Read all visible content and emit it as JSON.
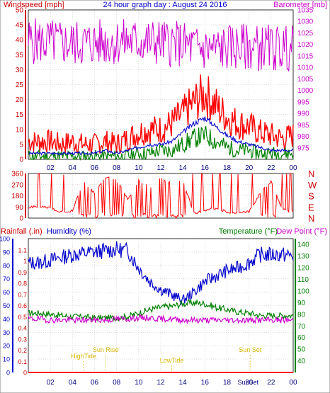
{
  "chart_data": [
    {
      "type": "line",
      "title": "24 hour graph day : August 24 2016",
      "left_axis_label": "Windspeed [mph]",
      "right_axis_label": "Barometer [mb]",
      "ylim": [
        0,
        50
      ],
      "y_ticks": [
        "0",
        "5",
        "10",
        "15",
        "20",
        "25",
        "30",
        "35",
        "40",
        "45",
        "50"
      ],
      "y2lim": [
        970,
        1035
      ],
      "y2_ticks": [
        "975",
        "980",
        "985",
        "990",
        "995",
        "1000",
        "1005",
        "1010",
        "1015",
        "1020",
        "1025",
        "1030",
        "1035"
      ],
      "x_ticks": [
        "02",
        "04",
        "06",
        "08",
        "10",
        "12",
        "14",
        "16",
        "18",
        "20",
        "22",
        "00"
      ],
      "grid": true,
      "colors": {
        "gust": "#ff0000",
        "average": "#0000cc",
        "wind": "#008000",
        "barometer": "#cc00cc"
      },
      "hours": [
        0,
        1,
        2,
        3,
        4,
        5,
        6,
        7,
        8,
        9,
        10,
        11,
        12,
        13,
        14,
        15,
        16,
        17,
        18,
        19,
        20,
        21,
        22,
        23,
        24
      ],
      "series": [
        {
          "role": "gust",
          "values": [
            6,
            6,
            6,
            5,
            6,
            5,
            5,
            6,
            5,
            7,
            9,
            10,
            10,
            12,
            15,
            19,
            22,
            18,
            14,
            12,
            11,
            9,
            8,
            7,
            8
          ]
        },
        {
          "role": "average",
          "values": [
            2,
            2,
            2,
            2,
            2,
            2,
            2,
            3,
            2,
            3,
            4,
            5,
            5,
            6,
            9,
            12,
            14,
            11,
            8,
            6,
            5,
            4,
            3,
            3,
            3
          ]
        },
        {
          "role": "wind",
          "values": [
            1,
            1,
            1,
            1,
            1,
            1,
            1,
            1,
            1,
            1,
            2,
            2,
            3,
            3,
            5,
            7,
            8,
            6,
            4,
            3,
            3,
            2,
            2,
            2,
            2
          ]
        },
        {
          "role": "barometer",
          "axis": "right",
          "values": [
            1021.5,
            1021.3,
            1021,
            1020.6,
            1020.4,
            1020.5,
            1020.8,
            1021,
            1021.2,
            1021.3,
            1021.3,
            1021.1,
            1020.9,
            1020.4,
            1019.8,
            1018.8,
            1018,
            1018.2,
            1018.6,
            1018.9,
            1018.8,
            1018.6,
            1018.5,
            1018.4,
            1018.3
          ]
        }
      ]
    },
    {
      "type": "line",
      "ylim": [
        0,
        360
      ],
      "y_ticks": [
        "0",
        "90",
        "180",
        "270",
        "360"
      ],
      "right_labels": [
        "N",
        "W",
        "S",
        "E",
        "N"
      ],
      "x_ticks": [
        "02",
        "04",
        "06",
        "08",
        "10",
        "12",
        "14",
        "16",
        "18",
        "20",
        "22",
        "00"
      ],
      "grid": true,
      "colors": {
        "direction": "#ff0000"
      },
      "hours": [
        0,
        1,
        2,
        3,
        4,
        5,
        6,
        7,
        8,
        9,
        10,
        11,
        12,
        13,
        14,
        15,
        16,
        17,
        18,
        19,
        20,
        21,
        22,
        23,
        24
      ],
      "series": [
        {
          "role": "wind direction",
          "values": [
            85,
            95,
            80,
            50,
            60,
            300,
            200,
            330,
            310,
            150,
            300,
            250,
            320,
            280,
            300,
            40,
            60,
            80,
            50,
            40,
            50,
            200,
            300,
            70,
            50
          ]
        }
      ]
    },
    {
      "type": "line",
      "labels": {
        "rainfall": "Rainfall (.in)",
        "humidity": "Humidity (%)",
        "temperature": "Temperature (°F)",
        "dewpoint": "Dew Point (°F)"
      },
      "rain_ylim": [
        0,
        1.2
      ],
      "rain_ticks": [
        "0",
        "0.1",
        "0.2",
        "0.3",
        "0.4",
        "0.5",
        "0.6",
        "0.7",
        "0.8",
        "0.9",
        "1",
        "1.1"
      ],
      "humidity_ylim": [
        0,
        100
      ],
      "humidity_ticks": [
        "0",
        "10",
        "20",
        "30",
        "40",
        "50",
        "60",
        "70",
        "80",
        "90",
        "100"
      ],
      "temp_ylim": [
        30,
        145
      ],
      "temp_ticks": [
        "40",
        "50",
        "60",
        "70",
        "80",
        "90",
        "100",
        "110",
        "120",
        "130",
        "140"
      ],
      "x_ticks": [
        "02",
        "04",
        "06",
        "08",
        "10",
        "12",
        "14",
        "16",
        "18",
        "20",
        "22",
        "00"
      ],
      "grid": true,
      "colors": {
        "rain": "#ff0000",
        "humidity": "#0000cc",
        "temperature": "#008000",
        "dewpoint": "#cc00cc"
      },
      "hours": [
        0,
        1,
        2,
        3,
        4,
        5,
        6,
        7,
        8,
        9,
        10,
        11,
        12,
        13,
        14,
        15,
        16,
        17,
        18,
        19,
        20,
        21,
        22,
        23,
        24
      ],
      "series": [
        {
          "role": "humidity",
          "axis": "left",
          "values": [
            82,
            82,
            84,
            86,
            88,
            89,
            90,
            91,
            92,
            91,
            78,
            68,
            62,
            58,
            54,
            60,
            68,
            72,
            76,
            78,
            82,
            88,
            88,
            88,
            87
          ]
        },
        {
          "role": "temperature",
          "axis": "right",
          "values": [
            81,
            81,
            80,
            79,
            78,
            78,
            77,
            77,
            77,
            78,
            81,
            84,
            86,
            87,
            89,
            90,
            89,
            86,
            84,
            82,
            81,
            79,
            79,
            79,
            79
          ]
        },
        {
          "role": "dewpoint",
          "axis": "right",
          "values": [
            76,
            76,
            75,
            75,
            75,
            75,
            75,
            75,
            76,
            76,
            77,
            77,
            76,
            76,
            75,
            75,
            75,
            75,
            75,
            75,
            75,
            75,
            75,
            75,
            75
          ]
        },
        {
          "role": "rainfall",
          "axis": "rain",
          "values": [
            0,
            0,
            0,
            0,
            0,
            0,
            0,
            0,
            0,
            0,
            0,
            0,
            0,
            0,
            0,
            0,
            0,
            0,
            0,
            0,
            0,
            0,
            0,
            0,
            0
          ]
        }
      ],
      "events": [
        {
          "label": "HighTide",
          "hour": 5
        },
        {
          "label": "Sun Rise",
          "hour": 7
        },
        {
          "label": "LowTide",
          "hour": 13
        },
        {
          "label": "Sun Set",
          "hour": 20.1
        }
      ],
      "extra_x_label": "SunSet"
    }
  ]
}
